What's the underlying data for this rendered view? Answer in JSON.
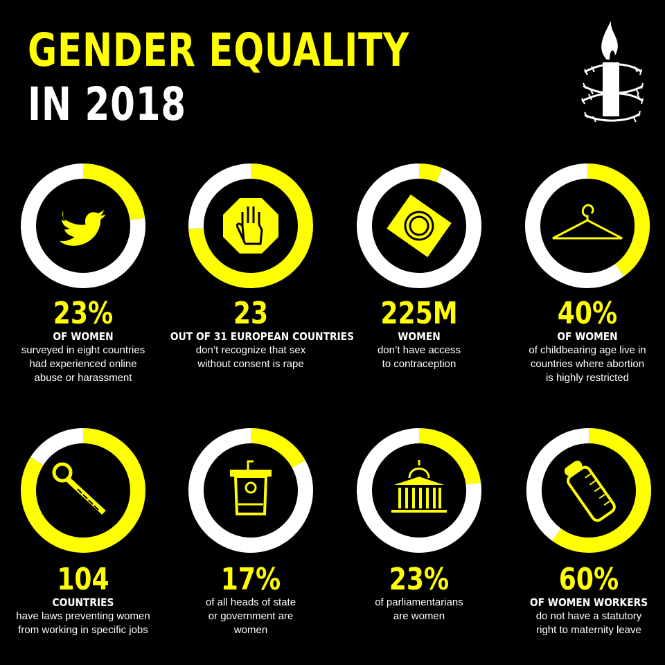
{
  "header": {
    "line1": "GENDER EQUALITY",
    "line2": "IN 2018"
  },
  "colors": {
    "accent": "#ffff00",
    "ring_rest": "#ffffff",
    "background": "#000000"
  },
  "chart_data": [
    {
      "type": "pie",
      "icon": "twitter-bird-icon",
      "value": 23,
      "number": "23%",
      "label": "OF WOMEN",
      "description": [
        "surveyed in eight countries",
        "had experienced online",
        "abuse or harassment"
      ]
    },
    {
      "type": "pie",
      "icon": "raised-hand-stop-icon",
      "value": 74.2,
      "number": "23",
      "label": "OUT OF 31 EUROPEAN COUNTRIES",
      "description": [
        "don’t recognize that sex",
        "without consent is rape"
      ]
    },
    {
      "type": "pie",
      "icon": "condom-packet-icon",
      "value": 6,
      "number": "225M",
      "label": "WOMEN",
      "description": [
        "don’t have access",
        "to contraception"
      ]
    },
    {
      "type": "pie",
      "icon": "coat-hanger-icon",
      "value": 40,
      "number": "40%",
      "label": "OF WOMEN",
      "description": [
        "of childbearing age live in",
        "countries where abortion",
        "is highly restricted"
      ]
    },
    {
      "type": "pie",
      "icon": "wrench-icon",
      "value": 84,
      "number": "104",
      "label": "COUNTRIES",
      "description": [
        "have laws preventing women",
        "from working in specific jobs"
      ]
    },
    {
      "type": "pie",
      "icon": "podium-icon",
      "value": 17,
      "number": "17%",
      "label": "",
      "description": [
        "of all heads of state",
        "or government are",
        "women"
      ]
    },
    {
      "type": "pie",
      "icon": "parliament-building-icon",
      "value": 23,
      "number": "23%",
      "label": "",
      "description": [
        "of parliamentarians",
        "are women"
      ]
    },
    {
      "type": "pie",
      "icon": "baby-bottle-icon",
      "value": 60,
      "number": "60%",
      "label": "OF WOMEN WORKERS",
      "description": [
        "do not have a statutory",
        "right to maternity leave"
      ]
    }
  ]
}
